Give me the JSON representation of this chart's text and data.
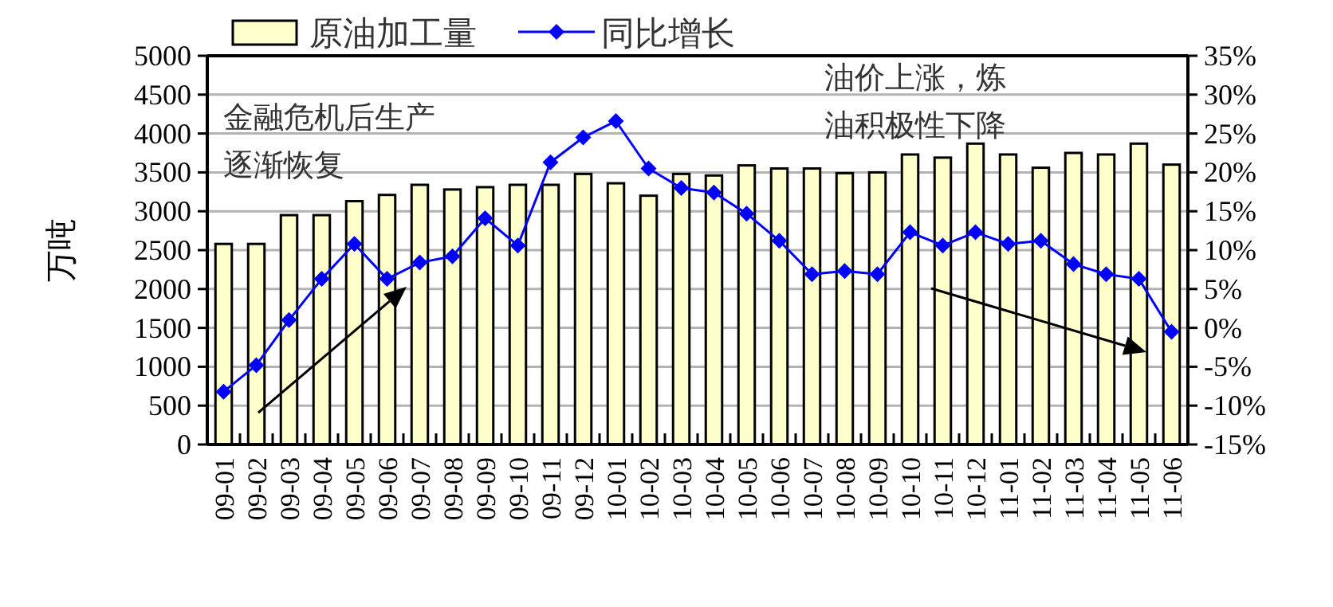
{
  "chart_data": {
    "type": "bar",
    "categories": [
      "09-01",
      "09-02",
      "09-03",
      "09-04",
      "09-05",
      "09-06",
      "09-07",
      "09-08",
      "09-09",
      "09-10",
      "09-11",
      "09-12",
      "10-01",
      "10-02",
      "10-03",
      "10-04",
      "10-05",
      "10-06",
      "10-07",
      "10-08",
      "10-09",
      "10-10",
      "10-11",
      "10-12",
      "11-01",
      "11-02",
      "11-03",
      "11-04",
      "11-05",
      "11-06"
    ],
    "series": [
      {
        "name": "原油加工量",
        "color": "#ffffcc",
        "values": [
          2580,
          2580,
          2950,
          2950,
          3130,
          3210,
          3340,
          3280,
          3310,
          3340,
          3340,
          3480,
          3360,
          3200,
          3480,
          3460,
          3590,
          3550,
          3550,
          3490,
          3500,
          3730,
          3690,
          3870,
          3730,
          3560,
          3750,
          3730,
          3870,
          3600
        ]
      },
      {
        "name": "同比增长",
        "type": "line",
        "axis": "y2",
        "color": "#0000ff",
        "marker": "diamond",
        "values": [
          -8.2,
          -4.8,
          1.0,
          6.3,
          10.8,
          6.3,
          8.4,
          9.2,
          14.1,
          10.6,
          21.3,
          24.5,
          26.6,
          20.5,
          18.0,
          17.4,
          14.7,
          11.2,
          6.9,
          7.3,
          6.9,
          12.3,
          10.6,
          12.3,
          10.8,
          11.2,
          8.2,
          6.9,
          6.3,
          -0.5
        ]
      }
    ],
    "ylabel": "万吨",
    "ylim": [
      0,
      5000
    ],
    "yticks": [
      0,
      500,
      1000,
      1500,
      2000,
      2500,
      3000,
      3500,
      4000,
      4500,
      5000
    ],
    "y2lim": [
      -15,
      35
    ],
    "y2ticks": [
      {
        "value": -15,
        "label": "-15%"
      },
      {
        "value": -10,
        "label": "-10%"
      },
      {
        "value": -5,
        "label": "-5%"
      },
      {
        "value": 0,
        "label": "0%"
      },
      {
        "value": 5,
        "label": "5%"
      },
      {
        "value": 10,
        "label": "10%"
      },
      {
        "value": 15,
        "label": "15%"
      },
      {
        "value": 20,
        "label": "20%"
      },
      {
        "value": 25,
        "label": "25%"
      },
      {
        "value": 30,
        "label": "30%"
      },
      {
        "value": 35,
        "label": "35%"
      }
    ],
    "grid": "y",
    "legend": "top",
    "annotations": [
      "金融危机后生产逐渐恢复",
      "油价上涨，炼油积极性下降"
    ]
  }
}
